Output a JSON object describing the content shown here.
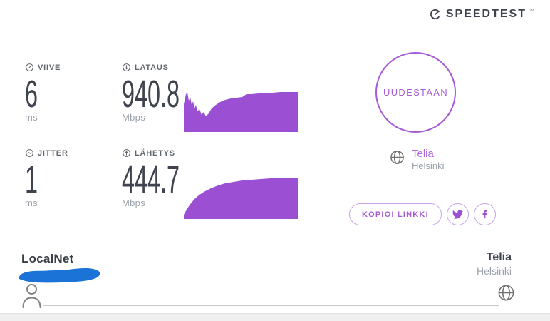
{
  "header": {
    "logo_text": "SPEEDTEST",
    "logo_mark": "™",
    "logo_icon": "speedtest-gauge-icon"
  },
  "metrics": {
    "ping": {
      "label": "VIIVE",
      "value": "6",
      "unit": "ms",
      "icon": "gauge-circle-icon"
    },
    "download": {
      "label": "LATAUS",
      "value": "940.8",
      "unit": "Mbps",
      "icon": "arrow-down-circle-icon"
    },
    "jitter": {
      "label": "JITTER",
      "value": "1",
      "unit": "ms",
      "icon": "wave-circle-icon"
    },
    "upload": {
      "label": "LÄHETYS",
      "value": "444.7",
      "unit": "Mbps",
      "icon": "arrow-up-circle-icon"
    }
  },
  "chart_data": [
    {
      "type": "area",
      "name": "download-speed-curve",
      "unit": "Mbps",
      "final_value": 940.8,
      "points": [
        [
          0,
          24
        ],
        [
          3,
          10
        ],
        [
          5,
          8
        ],
        [
          7,
          19
        ],
        [
          9,
          14
        ],
        [
          11,
          25
        ],
        [
          13,
          20
        ],
        [
          15,
          30
        ],
        [
          17,
          25
        ],
        [
          19,
          34
        ],
        [
          22,
          31
        ],
        [
          25,
          39
        ],
        [
          28,
          35
        ],
        [
          31,
          41
        ],
        [
          35,
          37
        ],
        [
          39,
          30
        ],
        [
          45,
          25
        ],
        [
          51,
          21
        ],
        [
          58,
          18
        ],
        [
          66,
          16
        ],
        [
          74,
          15
        ],
        [
          82,
          14
        ],
        [
          88,
          10
        ],
        [
          95,
          10
        ],
        [
          105,
          9
        ],
        [
          115,
          8
        ],
        [
          125,
          8
        ],
        [
          135,
          7
        ],
        [
          145,
          7
        ],
        [
          160,
          7
        ]
      ],
      "viewbox_w": 160,
      "viewbox_h": 63
    },
    {
      "type": "area",
      "name": "upload-speed-curve",
      "unit": "Mbps",
      "final_value": 444.7,
      "points": [
        [
          0,
          56
        ],
        [
          5,
          47
        ],
        [
          10,
          40
        ],
        [
          16,
          33
        ],
        [
          22,
          28
        ],
        [
          30,
          23
        ],
        [
          38,
          19
        ],
        [
          48,
          15
        ],
        [
          58,
          12
        ],
        [
          70,
          10
        ],
        [
          82,
          8
        ],
        [
          95,
          7
        ],
        [
          108,
          6
        ],
        [
          122,
          5
        ],
        [
          136,
          5
        ],
        [
          150,
          4
        ],
        [
          160,
          4
        ]
      ],
      "viewbox_w": 160,
      "viewbox_h": 62
    }
  ],
  "actions": {
    "restart_label": "UUDESTAAN",
    "copy_link_label": "KOPIOI LINKKI",
    "share_icons": [
      "twitter-icon",
      "facebook-icon"
    ]
  },
  "server": {
    "name": "Telia",
    "city": "Helsinki",
    "icon": "globe-icon"
  },
  "footer": {
    "isp_name": "LocalNet",
    "isp_detail_redacted": true,
    "person_icon": "person-icon",
    "server_name": "Telia",
    "server_city": "Helsinki",
    "globe_icon": "globe-icon"
  },
  "colors": {
    "purple": "#9b4fd3",
    "accent_purple": "#a55ad6",
    "light_purple": "#b168e0",
    "dark": "#3f434e",
    "label_gray": "#62676f",
    "unit_gray": "#9ba1ab",
    "icon_gray": "#707070",
    "line_gray": "#c8c8c8",
    "scribble_blue": "#1b72d7",
    "band_gray": "#f0f0f0"
  }
}
